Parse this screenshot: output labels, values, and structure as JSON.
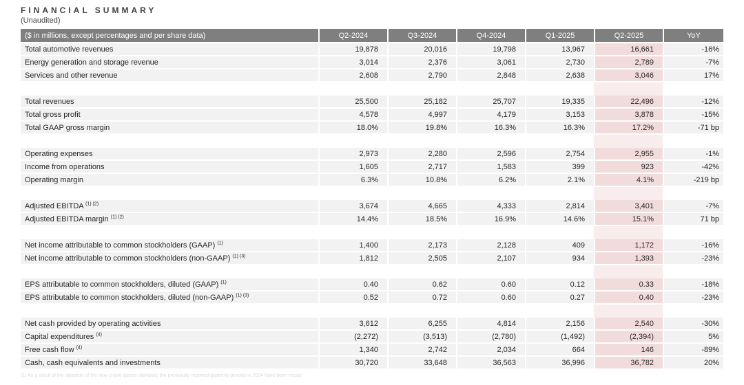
{
  "page": {
    "title": "FINANCIAL SUMMARY",
    "subtitle": "(Unaudited)"
  },
  "table": {
    "header": {
      "label": "($ in millions, except percentages and per share data)",
      "columns": [
        "Q2-2024",
        "Q3-2024",
        "Q4-2024",
        "Q1-2025",
        "Q2-2025",
        "YoY"
      ]
    },
    "highlight_column": "Q2-2025",
    "colors": {
      "header_bg": "#7f7f7f",
      "header_text": "#ffffff",
      "row_bg": "#f2f2f2",
      "highlight_cell_bg": "#f2dcdb",
      "highlight_spacer_bg": "#f8ecec"
    },
    "sections": [
      {
        "rows": [
          {
            "label": "Total automotive revenues",
            "sup": "",
            "values": [
              "19,878",
              "20,016",
              "19,798",
              "13,967",
              "16,661",
              "-16%"
            ]
          },
          {
            "label": "Energy generation and storage revenue",
            "sup": "",
            "values": [
              "3,014",
              "2,376",
              "3,061",
              "2,730",
              "2,789",
              "-7%"
            ]
          },
          {
            "label": "Services and other revenue",
            "sup": "",
            "values": [
              "2,608",
              "2,790",
              "2,848",
              "2,638",
              "3,046",
              "17%"
            ]
          }
        ]
      },
      {
        "rows": [
          {
            "label": "Total revenues",
            "sup": "",
            "values": [
              "25,500",
              "25,182",
              "25,707",
              "19,335",
              "22,496",
              "-12%"
            ]
          },
          {
            "label": "Total gross profit",
            "sup": "",
            "values": [
              "4,578",
              "4,997",
              "4,179",
              "3,153",
              "3,878",
              "-15%"
            ]
          },
          {
            "label": "Total GAAP gross margin",
            "sup": "",
            "values": [
              "18.0%",
              "19.8%",
              "16.3%",
              "16.3%",
              "17.2%",
              "-71 bp"
            ]
          }
        ]
      },
      {
        "rows": [
          {
            "label": "Operating expenses",
            "sup": "",
            "values": [
              "2,973",
              "2,280",
              "2,596",
              "2,754",
              "2,955",
              "-1%"
            ]
          },
          {
            "label": "Income from operations",
            "sup": "",
            "values": [
              "1,605",
              "2,717",
              "1,583",
              "399",
              "923",
              "-42%"
            ]
          },
          {
            "label": "Operating margin",
            "sup": "",
            "values": [
              "6.3%",
              "10.8%",
              "6.2%",
              "2.1%",
              "4.1%",
              "-219 bp"
            ]
          }
        ]
      },
      {
        "rows": [
          {
            "label": "Adjusted EBITDA",
            "sup": "(1) (2)",
            "values": [
              "3,674",
              "4,665",
              "4,333",
              "2,814",
              "3,401",
              "-7%"
            ]
          },
          {
            "label": "Adjusted EBITDA margin",
            "sup": "(1) (2)",
            "values": [
              "14.4%",
              "18.5%",
              "16.9%",
              "14.6%",
              "15.1%",
              "71 bp"
            ]
          }
        ]
      },
      {
        "rows": [
          {
            "label": "Net income attributable to common stockholders (GAAP)",
            "sup": "(1)",
            "values": [
              "1,400",
              "2,173",
              "2,128",
              "409",
              "1,172",
              "-16%"
            ]
          },
          {
            "label": "Net income attributable to common stockholders (non-GAAP)",
            "sup": "(1) (3)",
            "values": [
              "1,812",
              "2,505",
              "2,107",
              "934",
              "1,393",
              "-23%"
            ]
          }
        ]
      },
      {
        "rows": [
          {
            "label": "EPS attributable to common stockholders, diluted (GAAP)",
            "sup": "(1)",
            "values": [
              "0.40",
              "0.62",
              "0.60",
              "0.12",
              "0.33",
              "-18%"
            ]
          },
          {
            "label": "EPS attributable to common stockholders, diluted (non-GAAP)",
            "sup": "(1) (3)",
            "values": [
              "0.52",
              "0.72",
              "0.60",
              "0.27",
              "0.40",
              "-23%"
            ]
          }
        ]
      },
      {
        "rows": [
          {
            "label": "Net cash provided by operating activities",
            "sup": "",
            "values": [
              "3,612",
              "6,255",
              "4,814",
              "2,156",
              "2,540",
              "-30%"
            ]
          },
          {
            "label": "Capital expenditures",
            "sup": "(4)",
            "values": [
              "(2,272)",
              "(3,513)",
              "(2,780)",
              "(1,492)",
              "(2,394)",
              "5%"
            ]
          },
          {
            "label": "Free cash flow",
            "sup": "(4)",
            "values": [
              "1,340",
              "2,742",
              "2,034",
              "664",
              "146",
              "-89%"
            ]
          },
          {
            "label": "Cash, cash equivalents and investments",
            "sup": "",
            "values": [
              "30,720",
              "33,648",
              "36,563",
              "36,996",
              "36,782",
              "20%"
            ]
          }
        ]
      }
    ],
    "footnote": "(1) As a result of the adoption of the new crypto assets standard, the previously reported quarterly periods in 2024 have been recast"
  }
}
